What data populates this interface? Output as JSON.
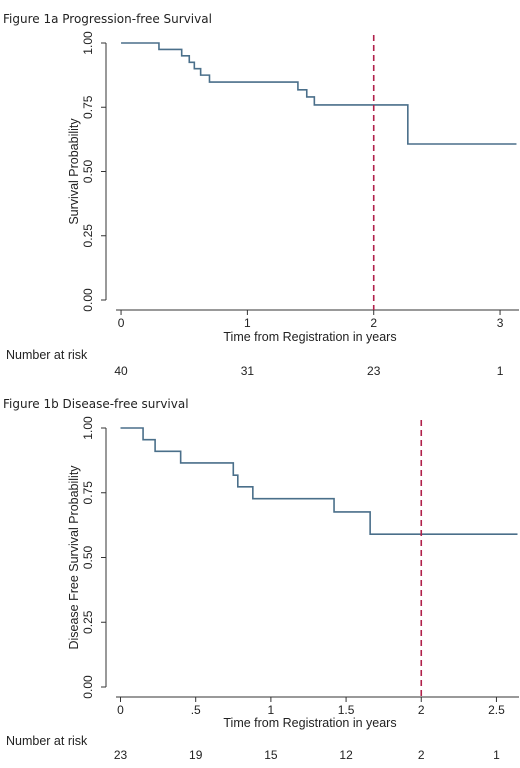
{
  "chart_data": [
    {
      "type": "line",
      "title": "Figure 1a Progression-free Survival",
      "xlabel": "Time from Registration in years",
      "ylabel": "Survival Probability",
      "xlim": [
        -0.04,
        3.15
      ],
      "ylim": [
        0,
        1
      ],
      "xticks": [
        0,
        1,
        2,
        3
      ],
      "xtick_labels": [
        "0",
        "1",
        "2",
        "3"
      ],
      "yticks": [
        0,
        0.25,
        0.5,
        0.75,
        1
      ],
      "ytick_labels": [
        "0.00",
        "0.25",
        "0.50",
        "0.75",
        "1.00"
      ],
      "series": [
        {
          "color": "#4a6f8a",
          "x": [
            0,
            0.3,
            0.48,
            0.54,
            0.58,
            0.63,
            0.7,
            1.4,
            1.47,
            1.53,
            2.27,
            3.13
          ],
          "y": [
            1.0,
            0.975,
            0.95,
            0.925,
            0.9,
            0.875,
            0.848,
            0.818,
            0.79,
            0.759,
            0.607,
            0.607
          ]
        }
      ],
      "vline": {
        "x": 2,
        "color": "#b0204a",
        "style": "dashed"
      },
      "risk_table": {
        "label": "Number at risk",
        "times": [
          0,
          1,
          2,
          3
        ],
        "counts": [
          "40",
          "31",
          "23",
          "1"
        ]
      }
    },
    {
      "type": "line",
      "title": "Figure 1b Disease-free survival",
      "xlabel": "Time from Registration in years",
      "ylabel": "Disease Free Survival Probability",
      "xlim": [
        -0.03,
        2.65
      ],
      "ylim": [
        0,
        1
      ],
      "xticks": [
        0,
        0.5,
        1,
        1.5,
        2,
        2.5
      ],
      "xtick_labels": [
        "0",
        ".5",
        "1",
        "1.5",
        "2",
        "2.5"
      ],
      "yticks": [
        0,
        0.25,
        0.5,
        0.75,
        1
      ],
      "ytick_labels": [
        "0.00",
        "0.25",
        "0.50",
        "0.75",
        "1.00"
      ],
      "series": [
        {
          "color": "#4a6f8a",
          "x": [
            0,
            0.15,
            0.23,
            0.4,
            0.75,
            0.78,
            0.88,
            1.42,
            1.66,
            2.64
          ],
          "y": [
            1.0,
            0.955,
            0.91,
            0.865,
            0.818,
            0.773,
            0.727,
            0.676,
            0.59,
            0.59
          ]
        }
      ],
      "vline": {
        "x": 2,
        "color": "#b0204a",
        "style": "dashed"
      },
      "risk_table": {
        "label": "Number at risk",
        "times": [
          0,
          0.5,
          1,
          1.5,
          2,
          2.5
        ],
        "counts": [
          "23",
          "19",
          "15",
          "12",
          "2",
          "1"
        ]
      }
    }
  ]
}
